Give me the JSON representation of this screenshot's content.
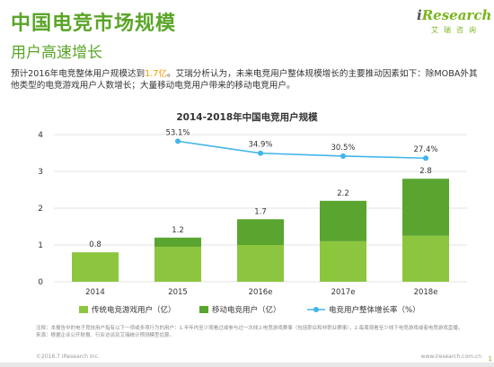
{
  "header": {
    "title": "中国电竞市场规模",
    "subtitle": "用户高速增长",
    "logo_brand_i": "i",
    "logo_brand_rest": "Research",
    "logo_sub": "艾瑞咨询"
  },
  "intro": {
    "part1": "预计2016年电竞整体用户规模达到",
    "highlight": "1.7亿",
    "part2": "。艾瑞分析认为，未来电竞用户整体规模增长的主要推动因素如下：除MOBA外其他类型的电竞游戏用户人数增长；大量移动电竞用户带来的移动电竞用户。"
  },
  "colors": {
    "bar_traditional": "#8cc63f",
    "bar_mobile": "#5aa52f",
    "line": "#3fb5e8",
    "accent": "#5aa528"
  },
  "chart_data": {
    "type": "bar",
    "title": "2014-2018年中国电竞用户规模",
    "categories": [
      "2014",
      "2015",
      "2016e",
      "2017e",
      "2018e"
    ],
    "ylim": [
      0,
      4
    ],
    "yticks": [
      0,
      1,
      2,
      3,
      4
    ],
    "stacked": true,
    "series": [
      {
        "name": "传统电竞游戏用户（亿）",
        "values": [
          0.8,
          0.95,
          1.0,
          1.1,
          1.25
        ]
      },
      {
        "name": "移动电竞用户（亿）",
        "values": [
          0.0,
          0.25,
          0.7,
          1.1,
          1.55
        ]
      }
    ],
    "totals": [
      "0.8",
      "1.2",
      "1.7",
      "2.2",
      "2.8"
    ],
    "line_series": {
      "name": "电竞用户整体增长率（%）",
      "values": [
        null,
        53.1,
        34.9,
        30.5,
        27.4
      ],
      "labels": [
        "",
        "53.1%",
        "34.9%",
        "30.5%",
        "27.4%"
      ]
    },
    "grid": true,
    "legend_position": "bottom"
  },
  "footer": {
    "note1": "注释：本报告中的电子竞技用户指有以下一项或多项行为的用户：1.半年内至少观看过或参与过一次线上电竞游戏赛事（包括职业和非职业赛事），2.每周观看至少线下电竞游戏或者电竞游戏直播。",
    "note2": "来源：根据企业公开财报、行业访谈及艾瑞统计预测模型估算。",
    "copyright": "©2016.7 iResearch Inc.",
    "website": "www.iresearch.com.cn",
    "page": "1"
  }
}
